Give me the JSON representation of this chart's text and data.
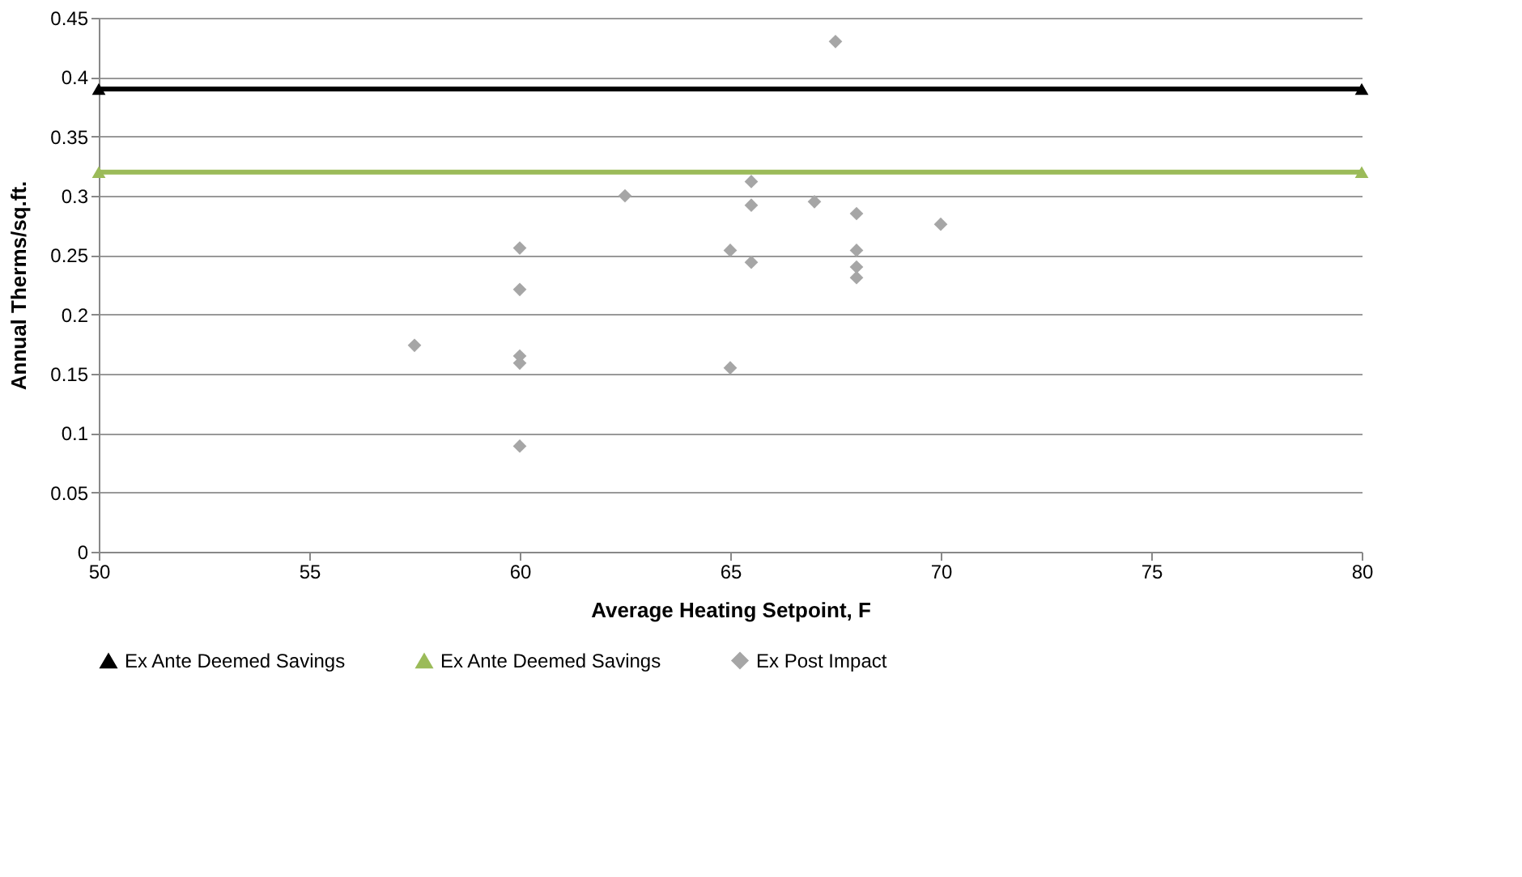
{
  "chart_data": {
    "type": "scatter",
    "xlabel": "Average Heating Setpoint, F",
    "ylabel": "Annual Therms/sq.ft.",
    "xlim": [
      50,
      80
    ],
    "xticks": [
      50,
      55,
      60,
      65,
      70,
      75,
      80
    ],
    "ylim": [
      0,
      0.45
    ],
    "yticks": [
      0,
      0.05,
      0.1,
      0.15,
      0.2,
      0.25,
      0.3,
      0.35,
      0.4,
      0.45
    ],
    "grid": "y",
    "legend": "bottom",
    "series": [
      {
        "name": "Ex Ante Deemed Savings",
        "type": "line",
        "marker": "triangle",
        "color": "#000000",
        "x": [
          50,
          80
        ],
        "values": [
          0.39,
          0.39
        ]
      },
      {
        "name": "Ex Ante Deemed Savings",
        "type": "line",
        "marker": "triangle",
        "color": "#9bbb59",
        "x": [
          50,
          80
        ],
        "values": [
          0.32,
          0.32
        ]
      },
      {
        "name": "Ex Post Impact",
        "marker": "diamond",
        "color": "#a6a6a6",
        "x": [
          57.5,
          60,
          60,
          60,
          60,
          60,
          62.5,
          65,
          65,
          65.5,
          65.5,
          65.5,
          67,
          67.5,
          68,
          68,
          68,
          68,
          70
        ],
        "values": [
          0.174,
          0.256,
          0.221,
          0.165,
          0.159,
          0.089,
          0.3,
          0.254,
          0.155,
          0.312,
          0.292,
          0.244,
          0.295,
          0.43,
          0.285,
          0.254,
          0.24,
          0.231,
          0.276
        ]
      }
    ]
  }
}
